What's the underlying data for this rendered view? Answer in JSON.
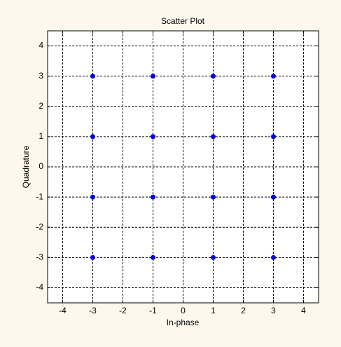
{
  "chart_data": {
    "type": "scatter",
    "title": "Scatter Plot",
    "xlabel": "In-phase",
    "ylabel": "Quadrature",
    "x": [
      -3,
      -1,
      1,
      3,
      -3,
      -1,
      1,
      3,
      -3,
      -1,
      1,
      3,
      -3,
      -1,
      1,
      3
    ],
    "y": [
      3,
      3,
      3,
      3,
      1,
      1,
      1,
      1,
      -1,
      -1,
      -1,
      -1,
      -3,
      -3,
      -3,
      -3
    ],
    "color": "#0000e6",
    "xlim": [
      -4.5,
      4.5
    ],
    "ylim": [
      -4.5,
      4.5
    ],
    "xticks": [
      -4,
      -3,
      -2,
      -1,
      0,
      1,
      2,
      3,
      4
    ],
    "yticks": [
      -4,
      -3,
      -2,
      -1,
      0,
      1,
      2,
      3,
      4
    ],
    "grid": true
  }
}
